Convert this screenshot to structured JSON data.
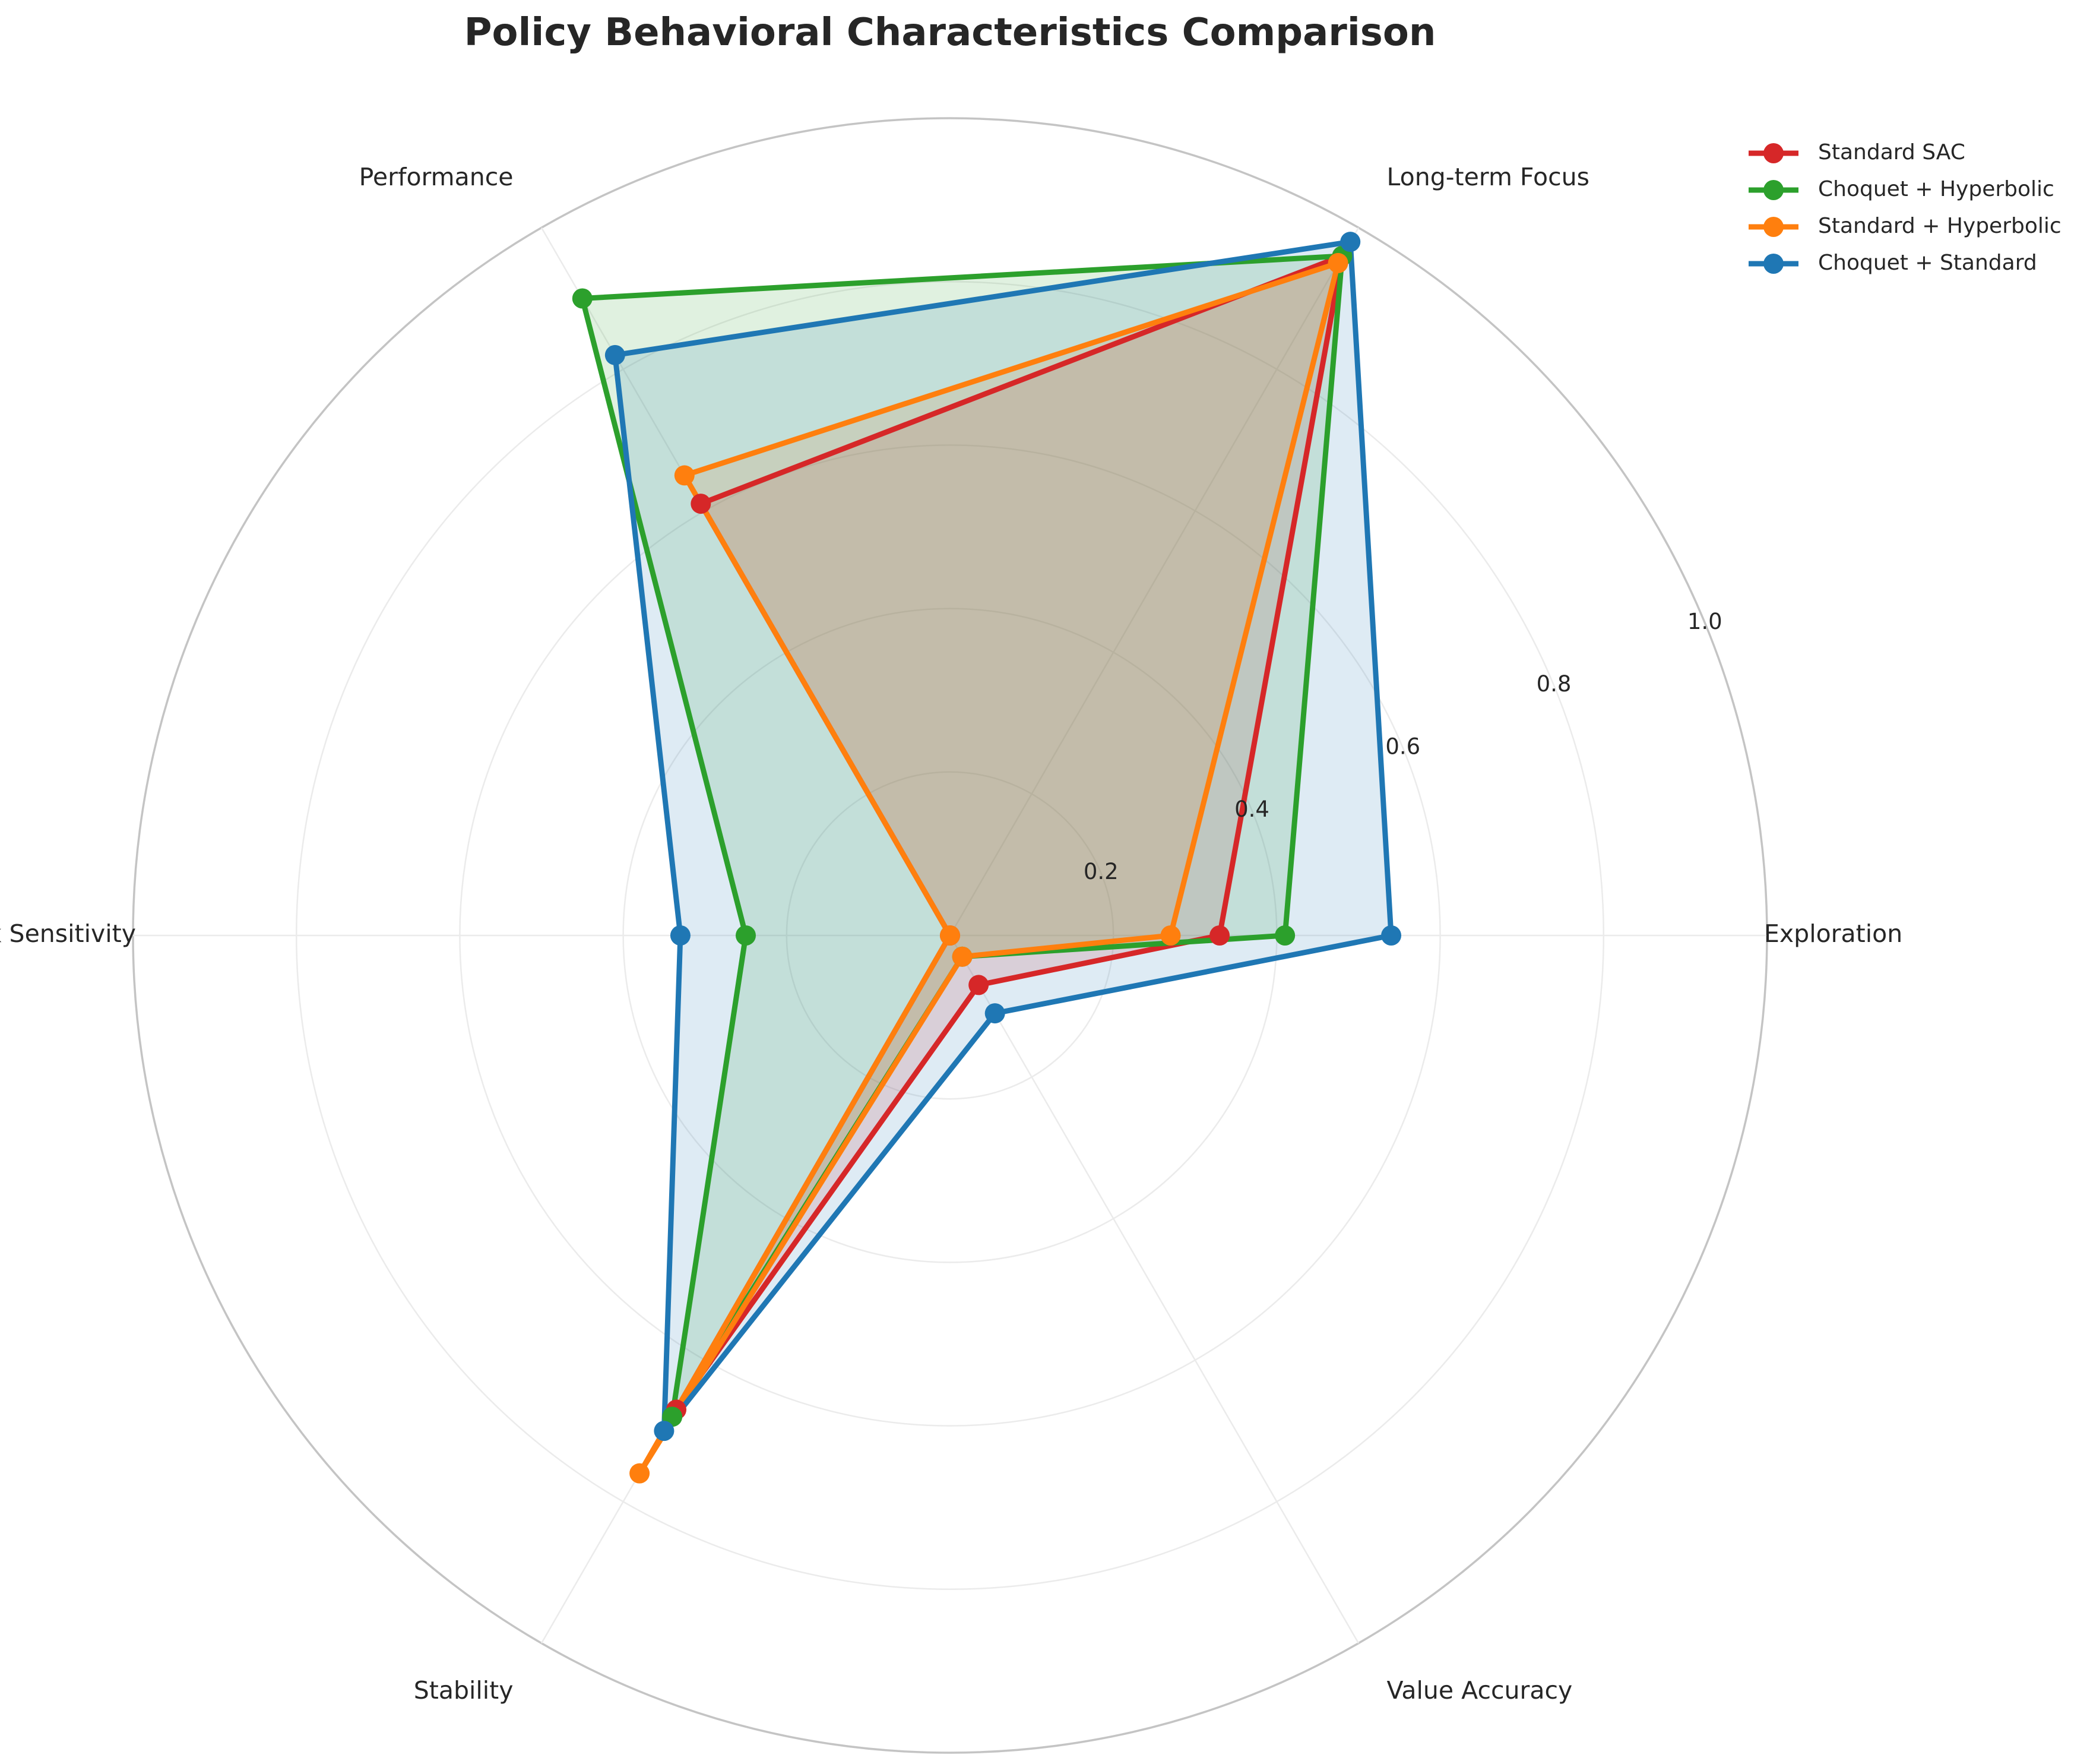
{
  "chart_data": {
    "type": "radar",
    "title": "Policy Behavioral Characteristics Comparison",
    "categories": [
      "Exploration",
      "Long-term Focus",
      "Performance",
      "Risk Sensitivity",
      "Stability",
      "Value Accuracy"
    ],
    "rlim": [
      0,
      1.0
    ],
    "rticks": [
      0.2,
      0.4,
      0.6,
      0.8,
      1.0
    ],
    "rtick_labels": [
      "0.2",
      "0.4",
      "0.6",
      "0.8",
      "1.0"
    ],
    "grid": true,
    "legend_position": "top-right",
    "series": [
      {
        "name": "Standard SAC",
        "color": "#d62728",
        "values": [
          0.33,
          0.96,
          0.61,
          0.0,
          0.67,
          0.07
        ]
      },
      {
        "name": "Choquet + Hyperbolic",
        "color": "#2ca02c",
        "values": [
          0.41,
          0.96,
          0.9,
          0.25,
          0.68,
          0.03
        ]
      },
      {
        "name": "Standard + Hyperbolic",
        "color": "#ff7f0e",
        "values": [
          0.27,
          0.95,
          0.65,
          0.0,
          0.76,
          0.03
        ]
      },
      {
        "name": "Choquet + Standard",
        "color": "#1f77b4",
        "values": [
          0.54,
          0.98,
          0.82,
          0.33,
          0.7,
          0.11
        ]
      }
    ]
  }
}
